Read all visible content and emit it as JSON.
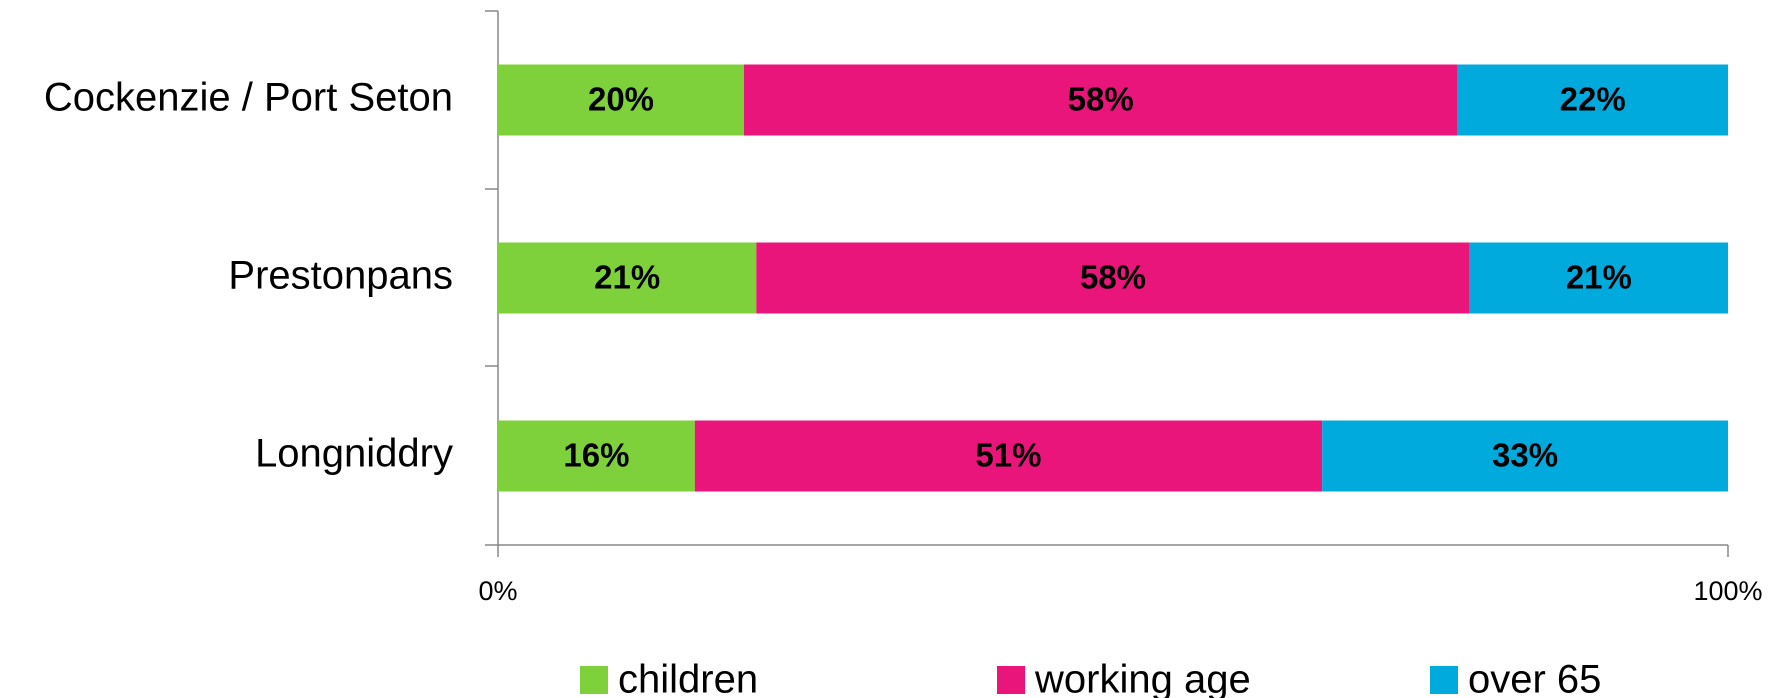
{
  "chart_data": {
    "type": "stacked_barh",
    "categories": [
      "Cockenzie / Port Seton",
      "Prestonpans",
      "Longniddry"
    ],
    "series": [
      {
        "name": "children",
        "color": "#7fd13b",
        "values": [
          20,
          21,
          16
        ],
        "value_labels": [
          "20%",
          "21%",
          "16%"
        ]
      },
      {
        "name": "working age",
        "color": "#ea157a",
        "values": [
          58,
          58,
          51
        ],
        "value_labels": [
          "58%",
          "58%",
          "51%"
        ]
      },
      {
        "name": "over 65",
        "color": "#00aadc",
        "values": [
          22,
          21,
          33
        ],
        "value_labels": [
          "22%",
          "21%",
          "33%"
        ]
      }
    ],
    "xlim": [
      0,
      100
    ],
    "xticks": [
      {
        "value": 0,
        "label": "0%"
      },
      {
        "value": 100,
        "label": "100%"
      }
    ],
    "legend": "bottom"
  }
}
